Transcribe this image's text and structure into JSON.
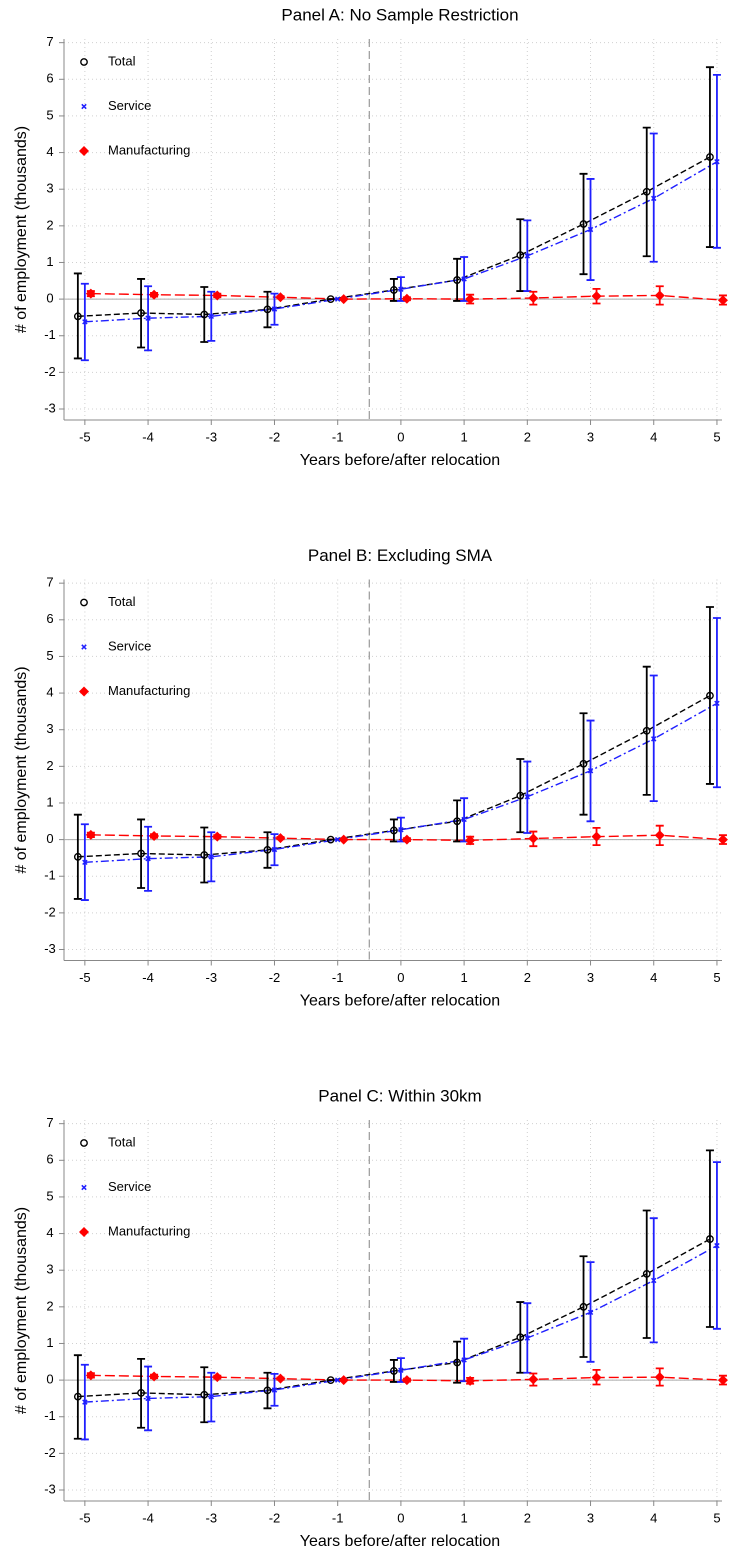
{
  "chart_data": [
    {
      "type": "line",
      "title": "Panel A: No Sample Restriction",
      "xlabel": "Years before/after relocation",
      "ylabel": "# of employment (thousands)",
      "x": [
        -5,
        -4,
        -3,
        -2,
        -1,
        0,
        1,
        2,
        3,
        4,
        5
      ],
      "xlim": [
        -5.33,
        5.08
      ],
      "xticks": [
        -5,
        -4,
        -3,
        -2,
        -1,
        0,
        1,
        2,
        3,
        4,
        5
      ],
      "ylim": [
        -3.3,
        7.1
      ],
      "yticks": [
        -3,
        -2,
        -1,
        0,
        1,
        2,
        3,
        4,
        5,
        6,
        7
      ],
      "grid": true,
      "legend": "upper left",
      "vline": -0.5,
      "hline": 0,
      "series": [
        {
          "name": "Total",
          "color": "#000000",
          "marker": "circle",
          "linestyle": "dashed",
          "values": [
            -0.47,
            -0.38,
            -0.42,
            -0.28,
            0,
            0.25,
            0.52,
            1.2,
            2.05,
            2.93,
            3.88
          ],
          "lower": [
            -1.62,
            -1.32,
            -1.17,
            -0.77,
            0,
            -0.05,
            -0.05,
            0.22,
            0.68,
            1.17,
            1.42
          ],
          "upper": [
            0.7,
            0.55,
            0.33,
            0.2,
            0,
            0.55,
            1.1,
            2.18,
            3.42,
            4.68,
            6.33
          ]
        },
        {
          "name": "Service",
          "color": "#1f1fff",
          "marker": "x",
          "linestyle": "dashdot",
          "values": [
            -0.62,
            -0.52,
            -0.47,
            -0.27,
            0,
            0.27,
            0.55,
            1.18,
            1.9,
            2.75,
            3.75
          ],
          "lower": [
            -1.67,
            -1.4,
            -1.14,
            -0.7,
            0,
            -0.05,
            -0.05,
            0.22,
            0.52,
            1.02,
            1.4
          ],
          "upper": [
            0.42,
            0.35,
            0.2,
            0.15,
            0,
            0.6,
            1.15,
            2.15,
            3.28,
            4.52,
            6.12
          ]
        },
        {
          "name": "Manufacturing",
          "color": "#ff0000",
          "marker": "diamond",
          "linestyle": "longdash",
          "values": [
            0.15,
            0.12,
            0.1,
            0.05,
            0,
            0.01,
            0,
            0.03,
            0.08,
            0.1,
            -0.03
          ],
          "lower": [
            0.08,
            0.07,
            0.05,
            0.02,
            0,
            -0.03,
            -0.12,
            -0.15,
            -0.12,
            -0.15,
            -0.15
          ],
          "upper": [
            0.22,
            0.17,
            0.15,
            0.08,
            0,
            0.05,
            0.12,
            0.2,
            0.28,
            0.35,
            0.1
          ]
        }
      ]
    },
    {
      "type": "line",
      "title": "Panel B: Excluding SMA",
      "xlabel": "Years before/after relocation",
      "ylabel": "# of employment (thousands)",
      "x": [
        -5,
        -4,
        -3,
        -2,
        -1,
        0,
        1,
        2,
        3,
        4,
        5
      ],
      "xlim": [
        -5.33,
        5.08
      ],
      "xticks": [
        -5,
        -4,
        -3,
        -2,
        -1,
        0,
        1,
        2,
        3,
        4,
        5
      ],
      "ylim": [
        -3.3,
        7.1
      ],
      "yticks": [
        -3,
        -2,
        -1,
        0,
        1,
        2,
        3,
        4,
        5,
        6,
        7
      ],
      "grid": true,
      "legend": "upper left",
      "vline": -0.5,
      "hline": 0,
      "series": [
        {
          "name": "Total",
          "color": "#000000",
          "marker": "circle",
          "linestyle": "dashed",
          "values": [
            -0.47,
            -0.38,
            -0.42,
            -0.28,
            0,
            0.25,
            0.5,
            1.2,
            2.07,
            2.97,
            3.93
          ],
          "lower": [
            -1.62,
            -1.32,
            -1.17,
            -0.77,
            0,
            -0.05,
            -0.05,
            0.2,
            0.68,
            1.22,
            1.52
          ],
          "upper": [
            0.68,
            0.55,
            0.33,
            0.2,
            0,
            0.55,
            1.07,
            2.2,
            3.45,
            4.72,
            6.35
          ]
        },
        {
          "name": "Service",
          "color": "#1f1fff",
          "marker": "x",
          "linestyle": "dashdot",
          "values": [
            -0.62,
            -0.52,
            -0.47,
            -0.27,
            0,
            0.27,
            0.55,
            1.17,
            1.88,
            2.75,
            3.72
          ],
          "lower": [
            -1.65,
            -1.4,
            -1.14,
            -0.7,
            0,
            -0.05,
            -0.05,
            0.18,
            0.5,
            1.05,
            1.43
          ],
          "upper": [
            0.42,
            0.35,
            0.2,
            0.15,
            0,
            0.6,
            1.13,
            2.13,
            3.25,
            4.48,
            6.05
          ]
        },
        {
          "name": "Manufacturing",
          "color": "#ff0000",
          "marker": "diamond",
          "linestyle": "longdash",
          "values": [
            0.13,
            0.1,
            0.08,
            0.04,
            0,
            0,
            -0.02,
            0.03,
            0.08,
            0.12,
            0
          ],
          "lower": [
            0.07,
            0.05,
            0.04,
            0.01,
            0,
            -0.04,
            -0.12,
            -0.18,
            -0.15,
            -0.15,
            -0.12
          ],
          "upper": [
            0.19,
            0.15,
            0.12,
            0.07,
            0,
            0.04,
            0.08,
            0.22,
            0.32,
            0.38,
            0.12
          ]
        }
      ]
    },
    {
      "type": "line",
      "title": "Panel C: Within 30km",
      "xlabel": "Years before/after relocation",
      "ylabel": "# of employment (thousands)",
      "x": [
        -5,
        -4,
        -3,
        -2,
        -1,
        0,
        1,
        2,
        3,
        4,
        5
      ],
      "xlim": [
        -5.33,
        5.08
      ],
      "xticks": [
        -5,
        -4,
        -3,
        -2,
        -1,
        0,
        1,
        2,
        3,
        4,
        5
      ],
      "ylim": [
        -3.3,
        7.1
      ],
      "yticks": [
        -3,
        -2,
        -1,
        0,
        1,
        2,
        3,
        4,
        5,
        6,
        7
      ],
      "grid": true,
      "legend": "upper left",
      "vline": -0.5,
      "hline": 0,
      "series": [
        {
          "name": "Total",
          "color": "#000000",
          "marker": "circle",
          "linestyle": "dashed",
          "values": [
            -0.45,
            -0.35,
            -0.4,
            -0.28,
            0,
            0.25,
            0.48,
            1.17,
            2.0,
            2.9,
            3.85
          ],
          "lower": [
            -1.6,
            -1.3,
            -1.15,
            -0.77,
            0,
            -0.05,
            -0.07,
            0.2,
            0.63,
            1.15,
            1.45
          ],
          "upper": [
            0.68,
            0.58,
            0.35,
            0.2,
            0,
            0.55,
            1.05,
            2.13,
            3.38,
            4.63,
            6.27
          ]
        },
        {
          "name": "Service",
          "color": "#1f1fff",
          "marker": "x",
          "linestyle": "dashdot",
          "values": [
            -0.6,
            -0.5,
            -0.45,
            -0.27,
            0,
            0.27,
            0.55,
            1.15,
            1.85,
            2.72,
            3.67
          ],
          "lower": [
            -1.62,
            -1.37,
            -1.13,
            -0.7,
            0,
            -0.05,
            -0.03,
            0.2,
            0.5,
            1.03,
            1.4
          ],
          "upper": [
            0.42,
            0.37,
            0.2,
            0.17,
            0,
            0.6,
            1.13,
            2.1,
            3.22,
            4.42,
            5.95
          ]
        },
        {
          "name": "Manufacturing",
          "color": "#ff0000",
          "marker": "diamond",
          "linestyle": "longdash",
          "values": [
            0.13,
            0.1,
            0.08,
            0.04,
            0,
            0,
            -0.02,
            0.02,
            0.07,
            0.08,
            0
          ],
          "lower": [
            0.07,
            0.05,
            0.04,
            0.01,
            0,
            -0.04,
            -0.1,
            -0.15,
            -0.12,
            -0.15,
            -0.12
          ],
          "upper": [
            0.19,
            0.15,
            0.12,
            0.07,
            0,
            0.04,
            0.06,
            0.18,
            0.28,
            0.32,
            0.12
          ]
        }
      ]
    }
  ]
}
